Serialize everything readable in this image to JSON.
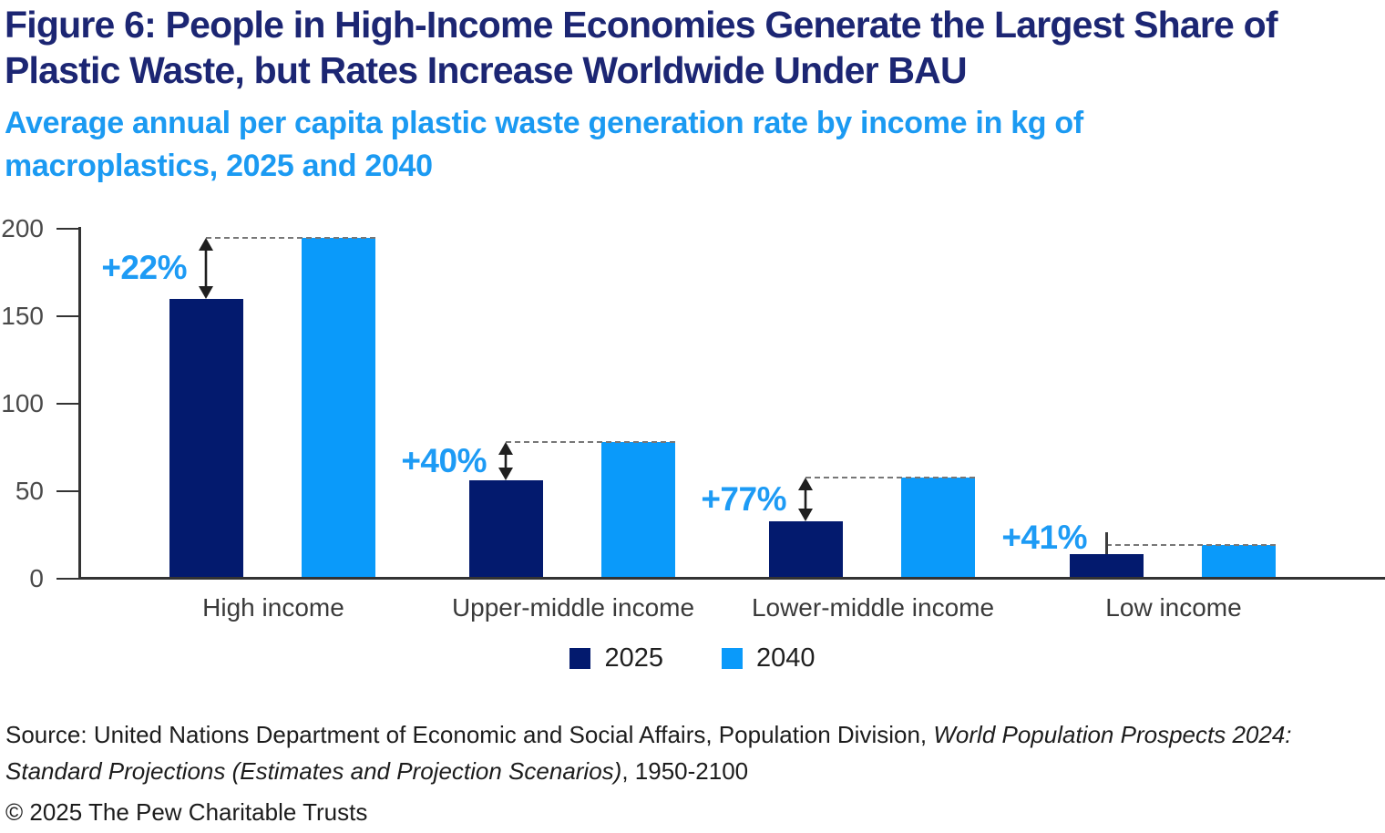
{
  "header": {
    "title": "Figure 6: People in High-Income Economies Generate the Largest Share of Plastic Waste, but Rates Increase Worldwide Under BAU",
    "subtitle": "Average annual per capita plastic waste generation rate by income in kg of macroplastics, 2025 and 2040"
  },
  "chart_data": {
    "type": "bar",
    "categories": [
      "High income",
      "Upper-middle income",
      "Lower-middle income",
      "Low income"
    ],
    "series": [
      {
        "name": "2025",
        "color": "#031a6e",
        "values": [
          159,
          55,
          32,
          13
        ]
      },
      {
        "name": "2040",
        "color": "#0a9afa",
        "values": [
          194,
          77,
          57,
          18
        ]
      }
    ],
    "pct_change_labels": [
      "+22%",
      "+40%",
      "+77%",
      "+41%"
    ],
    "ylabel": "",
    "xlabel": "",
    "ylim": [
      0,
      200
    ],
    "yticks": [
      0,
      50,
      100,
      150,
      200
    ],
    "grid": false,
    "legend_position": "bottom"
  },
  "footer": {
    "source_prefix": "Source: United Nations Department of Economic and Social Affairs, Population Division, ",
    "source_italic": "World Population Prospects 2024: Standard Projections (Estimates and Projection Scenarios)",
    "source_suffix": ", 1950-2100",
    "copyright": "© 2025 The Pew Charitable Trusts"
  },
  "colors": {
    "title_navy": "#1c2673",
    "subtitle_blue": "#1b9af2",
    "bar_navy_2025": "#031a6e",
    "bar_blue_2040": "#0a9afa",
    "pct_label_blue": "#1d9bf5",
    "axis_dark": "#333333",
    "tick_label_gray": "#4a4a4a",
    "category_label_gray": "#3a3a3a",
    "arrow_black": "#1f1f1f",
    "dash_gray": "#777777"
  }
}
